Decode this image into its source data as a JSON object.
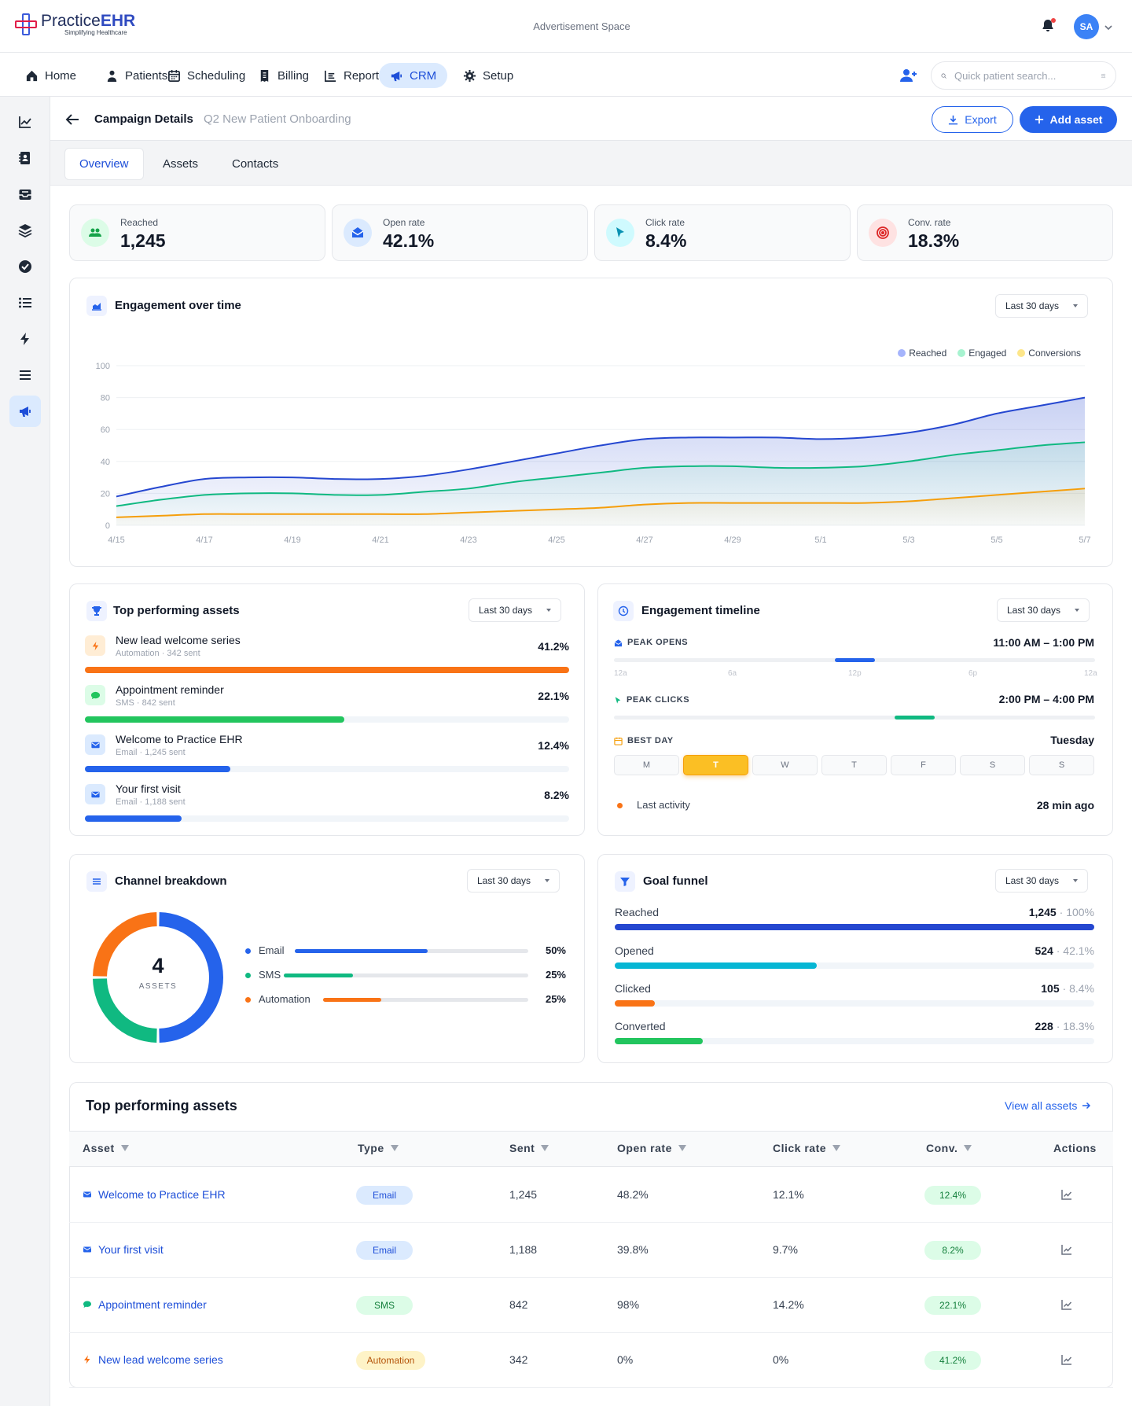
{
  "brand": {
    "name_a": "Practice",
    "name_b": "EHR",
    "tagline": "Simplifying Healthcare"
  },
  "ad_text": "Advertisement Space",
  "user": {
    "initials": "SA"
  },
  "nav": {
    "items": [
      {
        "label": "Home",
        "icon": "home-icon"
      },
      {
        "label": "Patients",
        "icon": "patients-icon"
      },
      {
        "label": "Scheduling",
        "icon": "calendar-icon"
      },
      {
        "label": "Billing",
        "icon": "billing-icon"
      },
      {
        "label": "Reports",
        "icon": "reports-icon"
      },
      {
        "label": "CRM",
        "icon": "megaphone-icon",
        "active": true
      },
      {
        "label": "Setup",
        "icon": "gear-icon"
      }
    ],
    "search_placeholder": "Quick patient search..."
  },
  "sidebar": [
    "chart-line-icon",
    "contact-book-icon",
    "inbox-icon",
    "layers-icon",
    "check-circle-icon",
    "list-icon",
    "bolt-icon",
    "menu-icon",
    "megaphone-icon"
  ],
  "page": {
    "title": "Campaign Details",
    "subtitle": "Q2 New Patient Onboarding",
    "export_label": "Export",
    "add_label": "Add asset"
  },
  "tabs": [
    "Overview",
    "Assets",
    "Contacts"
  ],
  "kpis": [
    {
      "label": "Reached",
      "value": "1,245",
      "icon": "users-icon",
      "bg": "#dcfce7",
      "fg": "#16a34a"
    },
    {
      "label": "Open rate",
      "value": "42.1%",
      "icon": "envelope-open-icon",
      "bg": "#dbeafe",
      "fg": "#2563eb"
    },
    {
      "label": "Click rate",
      "value": "8.4%",
      "icon": "cursor-icon",
      "bg": "#cffafe",
      "fg": "#0891b2"
    },
    {
      "label": "Conv. rate",
      "value": "18.3%",
      "icon": "target-icon",
      "bg": "#fee2e2",
      "fg": "#dc2626"
    }
  ],
  "engagement": {
    "title": "Engagement over time",
    "range": "Last 30 days",
    "chart_data": {
      "type": "area",
      "x": [
        "4/15",
        "4/16",
        "4/17",
        "4/18",
        "4/19",
        "4/20",
        "4/21",
        "4/22",
        "4/23",
        "4/24",
        "4/25",
        "4/26",
        "4/27",
        "4/28",
        "4/29",
        "4/30",
        "5/1",
        "5/2",
        "5/3",
        "5/4",
        "5/5",
        "5/6",
        "5/7"
      ],
      "x_tick_labels": [
        "4/15",
        "4/17",
        "4/19",
        "4/21",
        "4/23",
        "4/25",
        "4/27",
        "4/29",
        "5/1",
        "5/3",
        "5/5",
        "5/7"
      ],
      "ylim": [
        0,
        100
      ],
      "y_ticks": [
        0,
        20,
        40,
        60,
        80,
        100
      ],
      "legend_placement": "top-right",
      "grid": true,
      "series": [
        {
          "name": "Reached",
          "color": "#2547d0",
          "values": [
            18,
            24,
            29,
            30,
            30,
            29,
            29,
            31,
            35,
            40,
            45,
            50,
            54,
            55,
            55,
            55,
            54,
            55,
            58,
            63,
            70,
            75,
            80
          ]
        },
        {
          "name": "Engaged",
          "color": "#10b981",
          "values": [
            12,
            16,
            19,
            20,
            20,
            19,
            19,
            21,
            23,
            27,
            30,
            33,
            36,
            37,
            37,
            36,
            36,
            37,
            40,
            44,
            47,
            50,
            52
          ]
        },
        {
          "name": "Conversions",
          "color": "#f59e0b",
          "values": [
            5,
            6,
            7,
            7,
            7,
            7,
            7,
            7,
            8,
            9,
            10,
            11,
            13,
            14,
            14,
            14,
            14,
            14,
            15,
            17,
            19,
            21,
            23
          ]
        }
      ],
      "legend_colors": {
        "Reached": "#a5b4fc",
        "Engaged": "#a7f3d0",
        "Conversions": "#fde68a"
      }
    }
  },
  "top_assets": {
    "title": "Top performing assets",
    "range": "Last 30 days",
    "items": [
      {
        "name": "New lead welcome series",
        "meta": "Automation · 342 sent",
        "pct": "41.2%",
        "value": 100,
        "color": "#f97316",
        "icon": "bolt-icon",
        "icon_bg": "#ffedd5"
      },
      {
        "name": "Appointment reminder",
        "meta": "SMS · 842 sent",
        "pct": "22.1%",
        "value": 53.6,
        "color": "#22c55e",
        "icon": "chat-icon",
        "icon_bg": "#dcfce7"
      },
      {
        "name": "Welcome to Practice EHR",
        "meta": "Email · 1,245 sent",
        "pct": "12.4%",
        "value": 30.1,
        "color": "#2563eb",
        "icon": "envelope-icon",
        "icon_bg": "#dbeafe"
      },
      {
        "name": "Your first visit",
        "meta": "Email · 1,188 sent",
        "pct": "8.2%",
        "value": 20,
        "color": "#2563eb",
        "icon": "envelope-icon",
        "icon_bg": "#dbeafe"
      }
    ]
  },
  "timeline": {
    "title": "Engagement timeline",
    "range": "Last 30 days",
    "peak_opens": {
      "label": "PEAK OPENS",
      "value": "11:00 AM – 1:00 PM",
      "start_hour": 11,
      "end_hour": 13,
      "color": "#2563eb"
    },
    "peak_clicks": {
      "label": "PEAK CLICKS",
      "value": "2:00 PM – 4:00 PM",
      "start_hour": 14,
      "end_hour": 16,
      "color": "#10b981"
    },
    "ticks": [
      "12a",
      "6a",
      "12p",
      "6p",
      "12a"
    ],
    "best_day": {
      "label": "BEST DAY",
      "value": "Tuesday",
      "days": [
        "M",
        "T",
        "W",
        "T",
        "F",
        "S",
        "S"
      ],
      "active_index": 1
    },
    "last_activity": {
      "label": "Last activity",
      "value": "28 min ago"
    }
  },
  "channel": {
    "title": "Channel breakdown",
    "range": "Last 30 days",
    "total": "4",
    "total_label": "ASSETS",
    "items": [
      {
        "name": "Email",
        "pct": "50%",
        "value": 50,
        "color": "#2563eb"
      },
      {
        "name": "SMS",
        "pct": "25%",
        "value": 25,
        "color": "#10b981"
      },
      {
        "name": "Automation",
        "pct": "25%",
        "value": 25,
        "color": "#f97316"
      }
    ]
  },
  "funnel": {
    "title": "Goal funnel",
    "range": "Last 30 days",
    "stages": [
      {
        "name": "Reached",
        "count": "1,245",
        "pct": "100%",
        "value": 100,
        "color": "#2547d0"
      },
      {
        "name": "Opened",
        "count": "524",
        "pct": "42.1%",
        "value": 42.1,
        "color": "#06b6d4"
      },
      {
        "name": "Clicked",
        "count": "105",
        "pct": "8.4%",
        "value": 8.4,
        "color": "#f97316"
      },
      {
        "name": "Converted",
        "count": "228",
        "pct": "18.3%",
        "value": 18.3,
        "color": "#22c55e"
      }
    ]
  },
  "table": {
    "title": "Top performing assets",
    "link": "View all assets",
    "columns": [
      "Asset",
      "Type",
      "Sent",
      "Open rate",
      "Click rate",
      "Conv.",
      "Actions"
    ],
    "rows": [
      {
        "asset": "Welcome to Practice EHR",
        "icon": "envelope-icon",
        "type": "Email",
        "sent": "1,245",
        "open": "48.2%",
        "click": "12.1%",
        "conv": "12.4%"
      },
      {
        "asset": "Your first visit",
        "icon": "envelope-icon",
        "type": "Email",
        "sent": "1,188",
        "open": "39.8%",
        "click": "9.7%",
        "conv": "8.2%"
      },
      {
        "asset": "Appointment reminder",
        "icon": "chat-icon",
        "type": "SMS",
        "sent": "842",
        "open": "98%",
        "click": "14.2%",
        "conv": "22.1%"
      },
      {
        "asset": "New lead welcome series",
        "icon": "bolt-icon",
        "type": "Automation",
        "sent": "342",
        "open": "0%",
        "click": "0%",
        "conv": "41.2%"
      }
    ],
    "type_colors": {
      "Email": {
        "bg": "#dbeafe",
        "fg": "#1d4ed8"
      },
      "SMS": {
        "bg": "#dcfce7",
        "fg": "#15803d"
      },
      "Automation": {
        "bg": "#fef3c7",
        "fg": "#b45309"
      }
    }
  }
}
